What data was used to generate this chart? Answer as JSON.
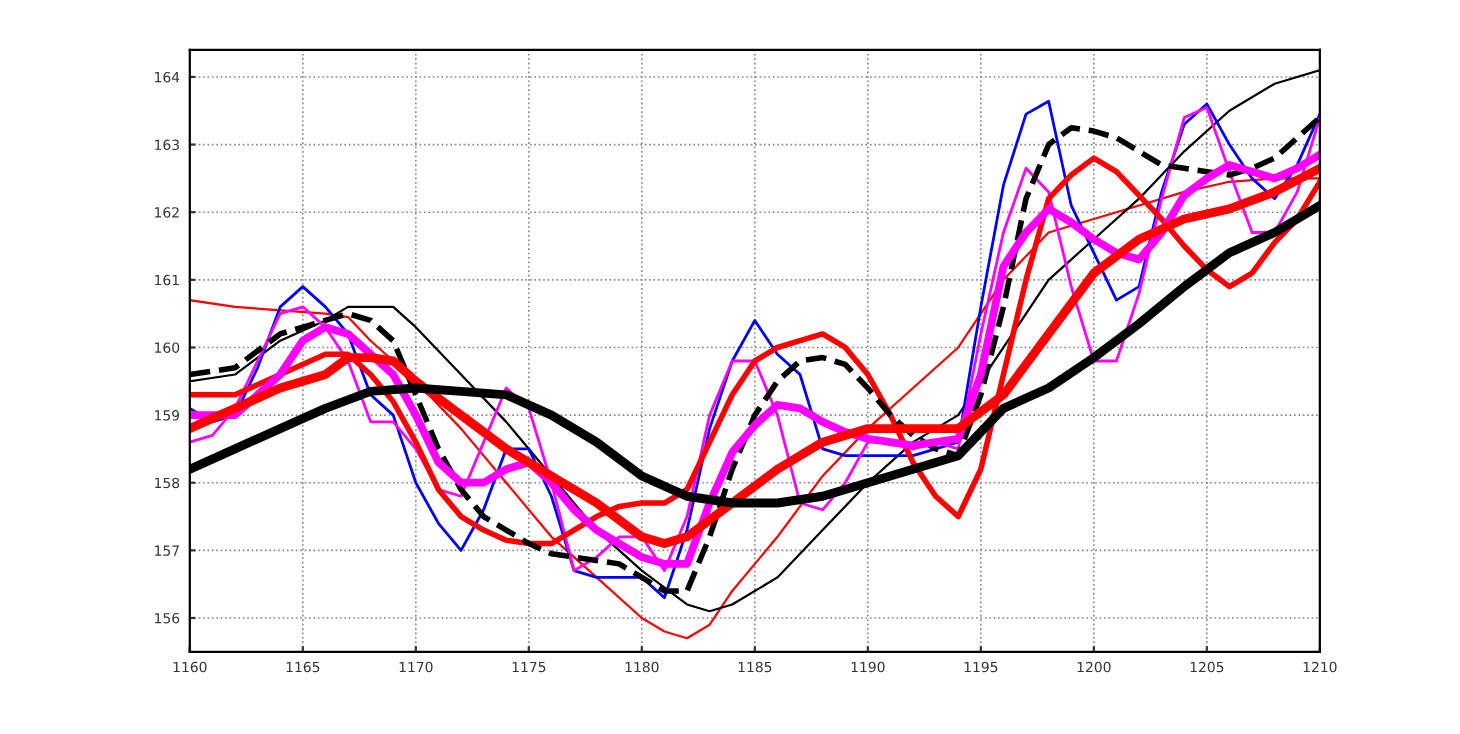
{
  "chart_data": {
    "type": "line",
    "xlim": [
      1160,
      1210
    ],
    "ylim": [
      155.5,
      164.4
    ],
    "xticks": [
      1160,
      1165,
      1170,
      1175,
      1180,
      1185,
      1190,
      1195,
      1200,
      1205,
      1210
    ],
    "yticks": [
      156,
      157,
      158,
      159,
      160,
      161,
      162,
      163,
      164
    ],
    "grid": true,
    "line_style": "solid",
    "series": [
      {
        "color": "#ff0000",
        "x": [
          1160,
          1162,
          1164,
          1166,
          1167,
          1168,
          1170,
          1172,
          1174,
          1176,
          1178,
          1180,
          1181,
          1182,
          1183,
          1184,
          1186,
          1188,
          1190,
          1192,
          1194,
          1196,
          1198,
          1200,
          1202,
          1204,
          1206,
          1208,
          1210
        ],
        "values": [
          160.7,
          160.6,
          160.55,
          160.5,
          160.45,
          160.1,
          159.5,
          158.8,
          158.0,
          157.2,
          156.6,
          156.0,
          155.8,
          155.7,
          155.9,
          156.4,
          157.2,
          158.1,
          158.8,
          159.4,
          160.0,
          161.0,
          161.7,
          161.9,
          162.1,
          162.3,
          162.45,
          162.5,
          162.5
        ]
      },
      {
        "color": "#000000",
        "x": [
          1160,
          1162,
          1164,
          1166,
          1167,
          1168,
          1169,
          1170,
          1172,
          1174,
          1176,
          1178,
          1180,
          1182,
          1183,
          1184,
          1186,
          1188,
          1190,
          1192,
          1194,
          1196,
          1198,
          1200,
          1202,
          1204,
          1206,
          1208,
          1210
        ],
        "values": [
          159.5,
          159.6,
          160.1,
          160.4,
          160.6,
          160.6,
          160.6,
          160.3,
          159.6,
          158.9,
          158.1,
          157.3,
          156.7,
          156.2,
          156.1,
          156.2,
          156.6,
          157.3,
          158.0,
          158.6,
          159.0,
          160.0,
          161.0,
          161.6,
          162.2,
          162.9,
          163.5,
          163.9,
          164.1
        ]
      },
      {
        "color": "#0000ff",
        "x": [
          1160,
          1161,
          1162,
          1163,
          1164,
          1165,
          1166,
          1167,
          1168,
          1169,
          1170,
          1171,
          1172,
          1173,
          1174,
          1175,
          1176,
          1177,
          1178,
          1179,
          1180,
          1181,
          1182,
          1183,
          1184,
          1185,
          1186,
          1187,
          1188,
          1189,
          1190,
          1191,
          1192,
          1193,
          1194,
          1195,
          1196,
          1197,
          1198,
          1199,
          1200,
          1201,
          1202,
          1203,
          1204,
          1205,
          1206,
          1207,
          1208,
          1209,
          1210
        ],
        "values": [
          159.1,
          158.9,
          159.0,
          159.7,
          160.6,
          160.9,
          160.6,
          160.2,
          159.3,
          159.0,
          158.0,
          157.4,
          157.0,
          157.6,
          158.5,
          158.5,
          157.8,
          156.7,
          156.6,
          156.6,
          156.6,
          156.3,
          157.3,
          158.8,
          159.8,
          160.4,
          159.9,
          159.6,
          158.5,
          158.4,
          158.4,
          158.4,
          158.4,
          158.5,
          158.6,
          160.6,
          162.4,
          163.45,
          163.64,
          162.1,
          161.4,
          160.7,
          160.9,
          162.3,
          163.3,
          163.6,
          163.0,
          162.5,
          162.2,
          162.7,
          163.45
        ]
      },
      {
        "color": "#ff00ff",
        "x": [
          1160,
          1161,
          1162,
          1163,
          1164,
          1165,
          1166,
          1167,
          1168,
          1169,
          1170,
          1171,
          1172,
          1173,
          1174,
          1175,
          1176,
          1177,
          1178,
          1179,
          1180,
          1181,
          1182,
          1183,
          1184,
          1185,
          1186,
          1187,
          1188,
          1189,
          1190,
          1191,
          1192,
          1193,
          1194,
          1195,
          1196,
          1197,
          1198,
          1199,
          1200,
          1201,
          1202,
          1203,
          1204,
          1205,
          1206,
          1207,
          1208,
          1209,
          1210
        ],
        "values": [
          158.6,
          158.7,
          159.1,
          159.8,
          160.5,
          160.6,
          160.3,
          159.8,
          158.9,
          158.9,
          158.5,
          157.9,
          157.8,
          158.6,
          159.4,
          159.1,
          158.0,
          156.7,
          156.9,
          157.2,
          157.2,
          156.7,
          157.5,
          159.0,
          159.8,
          159.8,
          159.0,
          157.7,
          157.6,
          158.0,
          158.6,
          158.6,
          158.5,
          158.6,
          158.5,
          160.2,
          161.7,
          162.65,
          162.3,
          160.9,
          159.8,
          159.8,
          160.8,
          162.2,
          163.4,
          163.55,
          162.6,
          161.7,
          161.7,
          162.3,
          163.4
        ]
      },
      {
        "color": "#ff0000",
        "x": [
          1160,
          1162,
          1164,
          1166,
          1167,
          1168,
          1169,
          1170,
          1171,
          1172,
          1173,
          1174,
          1175,
          1176,
          1177,
          1178,
          1179,
          1180,
          1181,
          1182,
          1183,
          1184,
          1185,
          1186,
          1187,
          1188,
          1189,
          1190,
          1191,
          1192,
          1193,
          1194,
          1195,
          1196,
          1197,
          1198,
          1199,
          1200,
          1201,
          1202,
          1203,
          1204,
          1205,
          1206,
          1207,
          1208,
          1209,
          1210
        ],
        "values": [
          159.3,
          159.3,
          159.6,
          159.9,
          159.9,
          159.6,
          159.2,
          158.6,
          157.9,
          157.5,
          157.3,
          157.15,
          157.1,
          157.1,
          157.3,
          157.5,
          157.65,
          157.7,
          157.7,
          157.9,
          158.6,
          159.3,
          159.8,
          160.0,
          160.1,
          160.2,
          160.0,
          159.6,
          159.0,
          158.3,
          157.8,
          157.5,
          158.2,
          159.6,
          161.0,
          162.2,
          162.55,
          162.8,
          162.6,
          162.25,
          161.9,
          161.5,
          161.15,
          160.9,
          161.1,
          161.55,
          161.9,
          162.45
        ]
      },
      {
        "color": "#000000",
        "line_style": "dashed",
        "x": [
          1160,
          1162,
          1164,
          1166,
          1167,
          1168,
          1169,
          1170,
          1171,
          1172,
          1173,
          1174,
          1175,
          1176,
          1177,
          1178,
          1179,
          1180,
          1181,
          1182,
          1183,
          1184,
          1185,
          1186,
          1187,
          1188,
          1189,
          1190,
          1191,
          1192,
          1193,
          1194,
          1195,
          1196,
          1197,
          1198,
          1199,
          1200,
          1201,
          1202,
          1203,
          1204,
          1205,
          1206,
          1207,
          1208,
          1209,
          1210
        ],
        "values": [
          159.6,
          159.7,
          160.2,
          160.4,
          160.5,
          160.4,
          160.1,
          159.3,
          158.5,
          157.9,
          157.5,
          157.3,
          157.1,
          156.95,
          156.9,
          156.85,
          156.8,
          156.6,
          156.4,
          156.4,
          157.2,
          158.2,
          159.0,
          159.5,
          159.8,
          159.85,
          159.75,
          159.4,
          159.0,
          158.7,
          158.5,
          158.4,
          159.3,
          160.6,
          162.2,
          163.0,
          163.25,
          163.2,
          163.1,
          162.9,
          162.7,
          162.65,
          162.6,
          162.55,
          162.65,
          162.8,
          163.1,
          163.4
        ]
      },
      {
        "color": "#ff00ff",
        "x": [
          1160,
          1162,
          1164,
          1165,
          1166,
          1167,
          1168,
          1169,
          1170,
          1171,
          1172,
          1173,
          1174,
          1175,
          1176,
          1177,
          1178,
          1179,
          1180,
          1181,
          1182,
          1183,
          1184,
          1185,
          1186,
          1187,
          1188,
          1189,
          1190,
          1191,
          1192,
          1193,
          1194,
          1195,
          1196,
          1197,
          1198,
          1199,
          1200,
          1201,
          1202,
          1203,
          1204,
          1205,
          1206,
          1207,
          1208,
          1209,
          1210
        ],
        "values": [
          159.0,
          159.0,
          159.6,
          160.1,
          160.3,
          160.2,
          159.9,
          159.6,
          159.0,
          158.3,
          158.0,
          158.0,
          158.2,
          158.3,
          158.0,
          157.6,
          157.3,
          157.1,
          156.9,
          156.8,
          156.8,
          157.7,
          158.45,
          158.85,
          159.15,
          159.1,
          158.9,
          158.75,
          158.65,
          158.6,
          158.55,
          158.6,
          158.65,
          159.6,
          161.2,
          161.7,
          162.05,
          161.85,
          161.6,
          161.4,
          161.3,
          161.7,
          162.25,
          162.5,
          162.7,
          162.6,
          162.5,
          162.65,
          162.85
        ]
      },
      {
        "color": "#ff0000",
        "x": [
          1160,
          1162,
          1164,
          1166,
          1167,
          1168,
          1169,
          1170,
          1172,
          1174,
          1176,
          1178,
          1180,
          1181,
          1182,
          1184,
          1186,
          1188,
          1190,
          1192,
          1194,
          1196,
          1198,
          1200,
          1202,
          1204,
          1206,
          1208,
          1210
        ],
        "values": [
          158.8,
          159.1,
          159.4,
          159.6,
          159.85,
          159.85,
          159.8,
          159.5,
          159.0,
          158.5,
          158.1,
          157.7,
          157.2,
          157.1,
          157.2,
          157.7,
          158.2,
          158.6,
          158.8,
          158.8,
          158.8,
          159.3,
          160.2,
          161.1,
          161.6,
          161.9,
          162.05,
          162.3,
          162.65
        ]
      },
      {
        "color": "#000000",
        "x": [
          1160,
          1162,
          1164,
          1166,
          1168,
          1170,
          1172,
          1174,
          1176,
          1178,
          1180,
          1182,
          1184,
          1186,
          1188,
          1190,
          1192,
          1194,
          1196,
          1198,
          1200,
          1202,
          1204,
          1206,
          1208,
          1210
        ],
        "values": [
          158.2,
          158.5,
          158.8,
          159.1,
          159.35,
          159.4,
          159.35,
          159.3,
          159.0,
          158.6,
          158.1,
          157.8,
          157.7,
          157.7,
          157.8,
          158.0,
          158.2,
          158.4,
          159.1,
          159.4,
          159.85,
          160.35,
          160.9,
          161.4,
          161.7,
          162.1
        ]
      }
    ]
  }
}
